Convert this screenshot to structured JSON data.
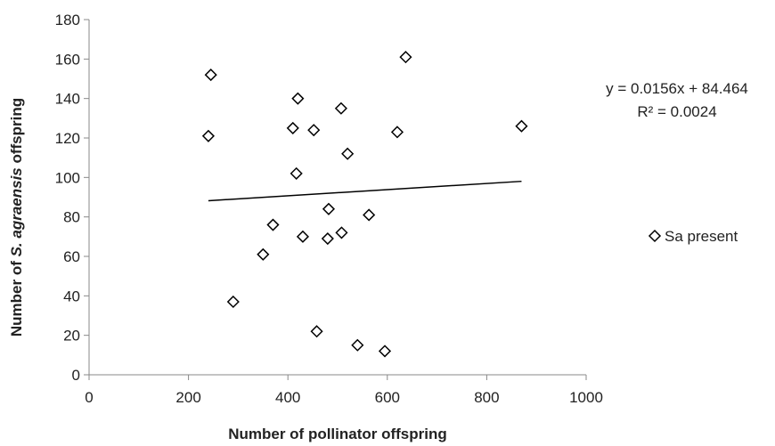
{
  "chart_data": {
    "type": "scatter",
    "xlabel": "Number of pollinator offspring",
    "ylabel": {
      "prefix": "Number of ",
      "italic": "S. agraensis",
      "suffix": " offspring"
    },
    "xlim": [
      0,
      1000
    ],
    "ylim": [
      0,
      180
    ],
    "xticks": [
      0,
      200,
      400,
      600,
      800,
      1000
    ],
    "yticks": [
      0,
      20,
      40,
      60,
      80,
      100,
      120,
      140,
      160,
      180
    ],
    "grid": false,
    "legend": {
      "position": "right",
      "entries": [
        "Sa present"
      ]
    },
    "series": [
      {
        "name": "Sa present",
        "marker": "diamond",
        "color": "#000000",
        "points": [
          [
            245,
            152
          ],
          [
            240,
            121
          ],
          [
            290,
            37
          ],
          [
            350,
            61
          ],
          [
            370,
            76
          ],
          [
            410,
            125
          ],
          [
            417,
            102
          ],
          [
            420,
            140
          ],
          [
            430,
            70
          ],
          [
            452,
            124
          ],
          [
            458,
            22
          ],
          [
            480,
            69
          ],
          [
            482,
            84
          ],
          [
            507,
            135
          ],
          [
            508,
            72
          ],
          [
            520,
            112
          ],
          [
            540,
            15
          ],
          [
            563,
            81
          ],
          [
            595,
            12
          ],
          [
            620,
            123
          ],
          [
            637,
            161
          ],
          [
            870,
            126
          ]
        ]
      }
    ],
    "trendline": {
      "slope": 0.0156,
      "intercept": 84.464,
      "x_range": [
        240,
        870
      ],
      "equation_text": "y = 0.0156x + 84.464",
      "r2_text": "R² = 0.0024"
    }
  }
}
